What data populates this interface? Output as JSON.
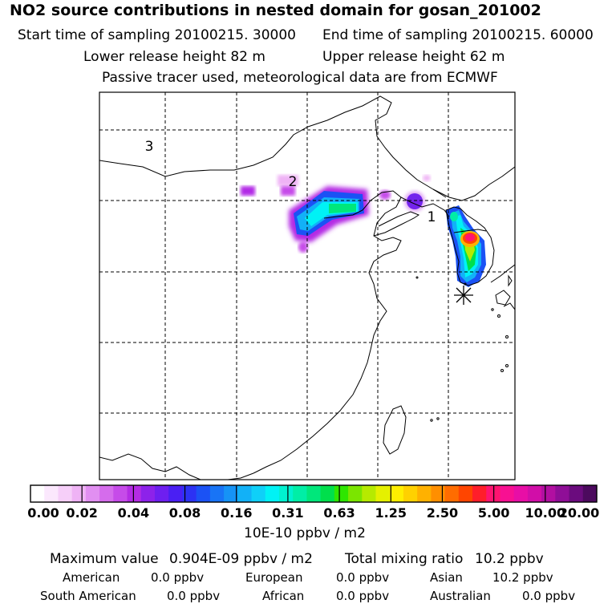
{
  "header": {
    "title": "NO2 source contributions in nested domain for gosan_201002",
    "start_label": "Start time of sampling 20100215. 30000",
    "end_label": "End time of sampling 20100215. 60000",
    "lower_label": "Lower release height   82 m",
    "upper_label": "Upper release height   62 m",
    "note": "Passive tracer used, meteorological data are from ECMWF"
  },
  "map": {
    "region_labels": [
      "1",
      "2",
      "3"
    ],
    "receptor_symbol": "✳"
  },
  "colorbar": {
    "colors": [
      "#ffffff",
      "#fbe8fd",
      "#f6cff9",
      "#efb3f5",
      "#e18ff1",
      "#d56cec",
      "#c64be9",
      "#b42ce4",
      "#8d22ea",
      "#6e1ff0",
      "#4a1ff3",
      "#2c32f4",
      "#1b52f5",
      "#1874f6",
      "#1693f6",
      "#12b1f7",
      "#0fd0f8",
      "#00f2f5",
      "#00f1d0",
      "#00eea6",
      "#00e77b",
      "#00df4c",
      "#2ee600",
      "#7be500",
      "#b6ea00",
      "#e5f000",
      "#ffee00",
      "#ffd100",
      "#ffb100",
      "#ff8f00",
      "#ff6c00",
      "#ff4500",
      "#ff1e2a",
      "#ff1470",
      "#f81092",
      "#e80ea6",
      "#d10ea8",
      "#b20fa1",
      "#8f0e97",
      "#6b0c7e",
      "#4c0a5e"
    ],
    "tick_labels": [
      "0.00",
      "0.02",
      "0.04",
      "0.08",
      "0.16",
      "0.31",
      "0.63",
      "1.25",
      "2.50",
      "5.00",
      "10.00",
      "20.00"
    ],
    "unit_label": "10E-10 ppbv / m2"
  },
  "summary": {
    "max_label": "Maximum value",
    "max_value": "0.904E-09 ppbv / m2",
    "total_label": "Total mixing ratio",
    "total_value": "10.2 ppbv",
    "regions": [
      {
        "name": "American",
        "value": "0.0 ppbv"
      },
      {
        "name": "European",
        "value": "0.0 ppbv"
      },
      {
        "name": "Asian",
        "value": "10.2 ppbv"
      },
      {
        "name": "South American",
        "value": "0.0 ppbv"
      },
      {
        "name": "African",
        "value": "0.0 ppbv"
      },
      {
        "name": "Australian",
        "value": "0.0 ppbv"
      }
    ]
  }
}
